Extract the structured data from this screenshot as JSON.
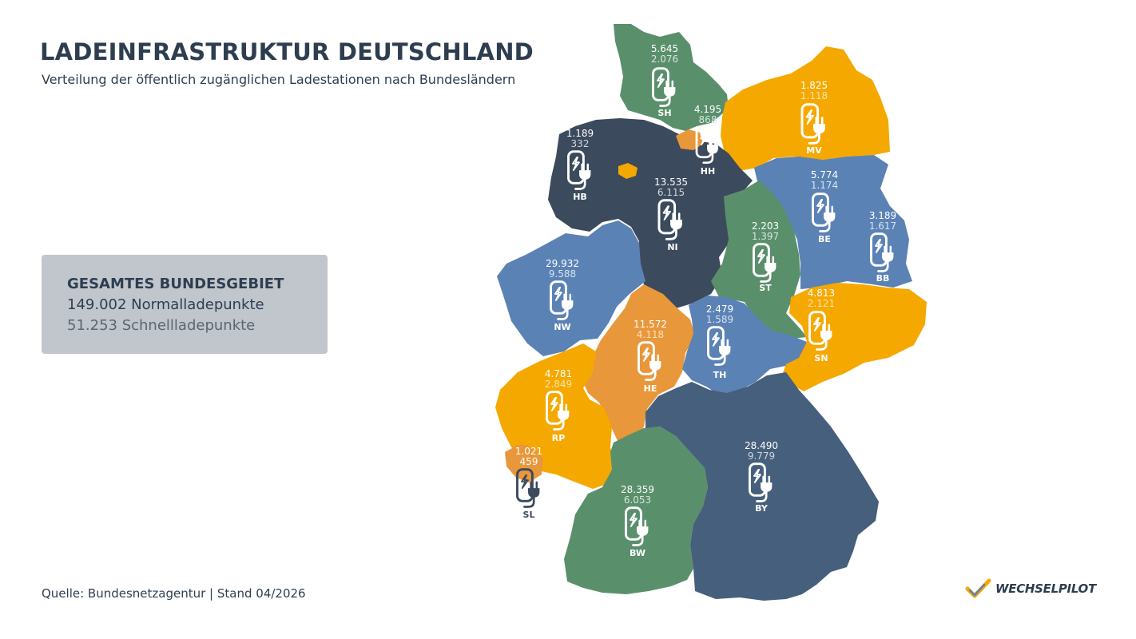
{
  "header": {
    "title": "LADEINFRASTRUKTUR DEUTSCHLAND",
    "subtitle": "Verteilung der öffentlich zugänglichen Ladestationen nach Bundesländern"
  },
  "totals": {
    "heading": "GESAMTES BUNDESGEBIET",
    "normal": "149.002 Normalladepunkte",
    "fast": "51.253 Schnellladepunkte"
  },
  "footer": {
    "source": "Quelle: Bundesnetzagentur | Stand 04/2026",
    "logo_text": "WECHSELPILOT"
  },
  "icon": "charging-station-icon",
  "colors": {
    "green": "#5a8f6c",
    "dark": "#3b4a5c",
    "navy": "#465f7c",
    "blue": "#5b82b5",
    "yellow": "#f5a800",
    "orange": "#e8973a",
    "gray": "#c0c6cc"
  },
  "states": {
    "SH": {
      "abbr": "SH",
      "normal": "5.645",
      "fast": "2.076"
    },
    "HH": {
      "abbr": "HH",
      "normal": "4.195",
      "fast": "868"
    },
    "MV": {
      "abbr": "MV",
      "normal": "1.825",
      "fast": "1.118"
    },
    "HB": {
      "abbr": "HB",
      "normal": "1.189",
      "fast": "332"
    },
    "NI": {
      "abbr": "NI",
      "normal": "13.535",
      "fast": "6.115"
    },
    "BE": {
      "abbr": "BE",
      "normal": "5.774",
      "fast": "1.174"
    },
    "BB": {
      "abbr": "BB",
      "normal": "3.189",
      "fast": "1.617"
    },
    "ST": {
      "abbr": "ST",
      "normal": "2.203",
      "fast": "1.397"
    },
    "NW": {
      "abbr": "NW",
      "normal": "29.932",
      "fast": "9.588"
    },
    "HE": {
      "abbr": "HE",
      "normal": "11.572",
      "fast": "4.118"
    },
    "TH": {
      "abbr": "TH",
      "normal": "2.479",
      "fast": "1.589"
    },
    "SN": {
      "abbr": "SN",
      "normal": "4.813",
      "fast": "2.121"
    },
    "RP": {
      "abbr": "RP",
      "normal": "4.781",
      "fast": "2.849"
    },
    "SL": {
      "abbr": "SL",
      "normal": "1.021",
      "fast": "459"
    },
    "BY": {
      "abbr": "BY",
      "normal": "28.490",
      "fast": "9.779"
    },
    "BW": {
      "abbr": "BW",
      "normal": "28.359",
      "fast": "6.053"
    }
  }
}
